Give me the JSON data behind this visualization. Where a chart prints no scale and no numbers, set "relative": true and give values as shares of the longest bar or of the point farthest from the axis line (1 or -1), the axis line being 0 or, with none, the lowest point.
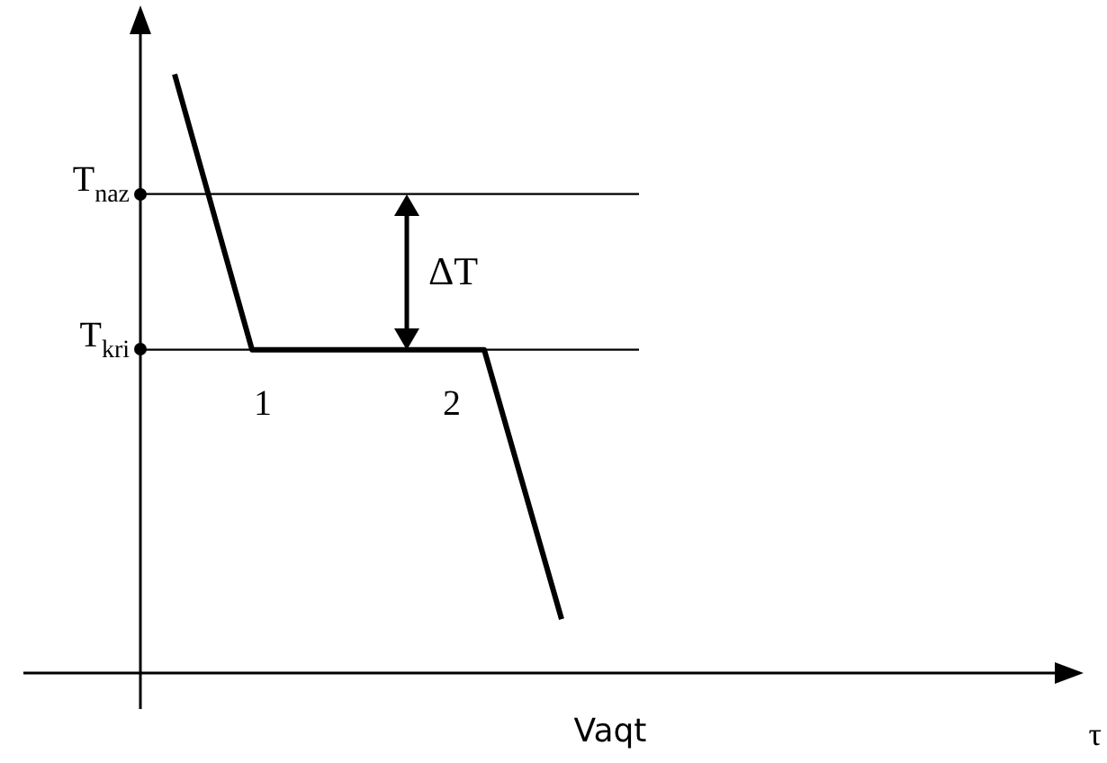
{
  "chart_data": {
    "type": "line",
    "relative": true,
    "xlabel": "Vaqt",
    "categories": [
      null,
      null,
      null,
      null,
      null,
      null
    ],
    "marker": "none",
    "line_style": "solid",
    "legend": false,
    "series": [
      {
        "color": "#000000",
        "values": [
          1,
          0.54,
          0.54,
          0.54,
          0.54,
          0.09
        ]
      }
    ],
    "ref_lines": [
      {
        "axis": "y",
        "value": 0.8,
        "label": "T$_{naz}$",
        "color": "#000000"
      },
      {
        "axis": "y",
        "value": 0.54,
        "label": "T$_{kri}$",
        "color": "#000000"
      }
    ],
    "annotations": [
      "1",
      "2",
      "ΔT",
      "τ"
    ]
  }
}
